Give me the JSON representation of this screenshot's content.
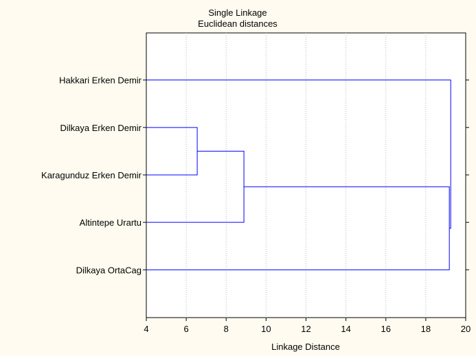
{
  "chart_data": {
    "type": "dendrogram",
    "title": "Single Linkage",
    "subtitle": "Euclidean distances",
    "xlabel": "Linkage Distance",
    "xlim": [
      4,
      20
    ],
    "xticks": [
      4,
      6,
      8,
      10,
      12,
      14,
      16,
      18,
      20
    ],
    "grid": "vertical dotted",
    "line_color": "#0000ff",
    "leaves": [
      "Hakkari Erken Demir",
      "Dilkaya Erken Demir",
      "Karagunduz Erken Demir",
      "Altintepe Urartu",
      "Dilkaya OrtaCag"
    ],
    "merges": [
      {
        "a": "Dilkaya Erken Demir",
        "b": "Karagunduz Erken Demir",
        "distance": 6.55
      },
      {
        "a": "cluster1",
        "b": "Altintepe Urartu",
        "distance": 8.89
      },
      {
        "a": "cluster2",
        "b": "Dilkaya OrtaCag",
        "distance": 19.18
      },
      {
        "a": "Hakkari Erken Demir",
        "b": "cluster3",
        "distance": 19.25
      }
    ]
  }
}
